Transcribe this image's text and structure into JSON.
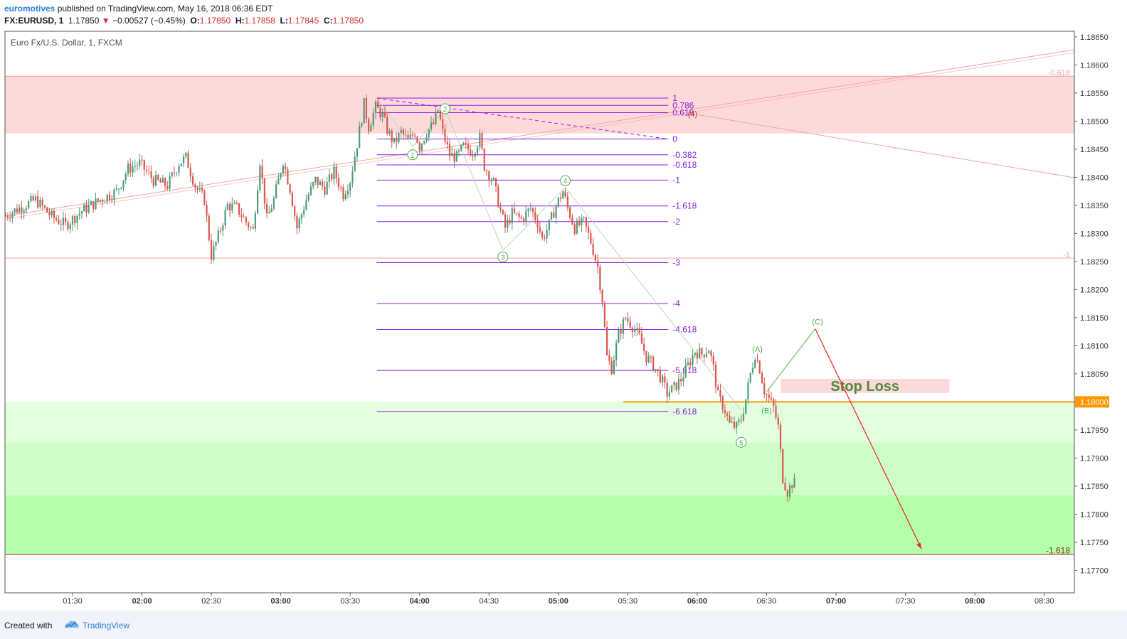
{
  "header": {
    "author": "euromotives",
    "published": "published on TradingView.com, May 16, 2018 06:36 EDT",
    "symbol": "FX:EURUSD, 1",
    "last": "1.17850",
    "change_arrow": "▼",
    "change": "−0.00527 (−0.45%)",
    "o_label": "O:",
    "o": "1.17850",
    "h_label": "H:",
    "h": "1.17858",
    "l_label": "L:",
    "l": "1.17845",
    "c_label": "C:",
    "c": "1.17850"
  },
  "footer": {
    "created_with": "Created with",
    "brand": "TradingView"
  },
  "colors": {
    "up": "#4e9a77",
    "down": "#d9574d",
    "fib": "#8c1ee6",
    "fib_label": "#8c1ee6",
    "resistance_zone": "#fdd9d9",
    "support_zone": "#b6ffad",
    "orange_line": "#ff9800",
    "red_projection": "#ee2222",
    "green_wave": "#4caf50",
    "stop_loss_text": "#4e8a3a"
  },
  "chart_data": {
    "type": "candlestick",
    "title": "Euro Fx/U.S. Dollar, 1, FXCM",
    "ylim": [
      1.1766,
      1.1866
    ],
    "y_ticks": [
      "1.18650",
      "1.18600",
      "1.18550",
      "1.18500",
      "1.18450",
      "1.18400",
      "1.18350",
      "1.18300",
      "1.18250",
      "1.18200",
      "1.18150",
      "1.18100",
      "1.18050",
      "1.18000",
      "1.17950",
      "1.17900",
      "1.17850",
      "1.17800",
      "1.17750",
      "1.17700"
    ],
    "x_ticks": [
      {
        "label": "01:30",
        "bold": false,
        "t": 90
      },
      {
        "label": "02:00",
        "bold": true,
        "t": 120
      },
      {
        "label": "02:30",
        "bold": false,
        "t": 150
      },
      {
        "label": "03:00",
        "bold": true,
        "t": 180
      },
      {
        "label": "03:30",
        "bold": false,
        "t": 210
      },
      {
        "label": "04:00",
        "bold": true,
        "t": 240
      },
      {
        "label": "04:30",
        "bold": false,
        "t": 270
      },
      {
        "label": "05:00",
        "bold": true,
        "t": 300
      },
      {
        "label": "05:30",
        "bold": false,
        "t": 330
      },
      {
        "label": "06:00",
        "bold": true,
        "t": 360
      },
      {
        "label": "06:30",
        "bold": false,
        "t": 390
      },
      {
        "label": "07:00",
        "bold": true,
        "t": 420
      },
      {
        "label": "07:30",
        "bold": false,
        "t": 450
      },
      {
        "label": "08:00",
        "bold": true,
        "t": 480
      },
      {
        "label": "08:30",
        "bold": false,
        "t": 510
      }
    ],
    "t_range": [
      60.8,
      523
    ],
    "price_path": [
      [
        61,
        1.1833
      ],
      [
        68,
        1.18345
      ],
      [
        75,
        1.1836
      ],
      [
        82,
        1.1833
      ],
      [
        88,
        1.18315
      ],
      [
        95,
        1.1834
      ],
      [
        103,
        1.1836
      ],
      [
        110,
        1.18375
      ],
      [
        115,
        1.18415
      ],
      [
        120,
        1.18425
      ],
      [
        126,
        1.18395
      ],
      [
        132,
        1.18385
      ],
      [
        137,
        1.18425
      ],
      [
        140,
        1.18435
      ],
      [
        144,
        1.18385
      ],
      [
        148,
        1.1836
      ],
      [
        151,
        1.1826
      ],
      [
        154,
        1.18295
      ],
      [
        158,
        1.1835
      ],
      [
        162,
        1.18345
      ],
      [
        166,
        1.1832
      ],
      [
        169,
        1.18305
      ],
      [
        172,
        1.1843
      ],
      [
        175,
        1.18325
      ],
      [
        178,
        1.1836
      ],
      [
        182,
        1.1843
      ],
      [
        185,
        1.1838
      ],
      [
        188,
        1.1831
      ],
      [
        192,
        1.1836
      ],
      [
        196,
        1.18395
      ],
      [
        200,
        1.1838
      ],
      [
        204,
        1.1841
      ],
      [
        208,
        1.1837
      ],
      [
        211,
        1.18395
      ],
      [
        214,
        1.1846
      ],
      [
        217,
        1.1853
      ],
      [
        219,
        1.1849
      ],
      [
        222,
        1.18525
      ],
      [
        225,
        1.1851
      ],
      [
        227,
        1.18485
      ],
      [
        230,
        1.1846
      ],
      [
        233,
        1.1848
      ],
      [
        236,
        1.18465
      ],
      [
        239,
        1.1848
      ],
      [
        241,
        1.18455
      ],
      [
        244,
        1.1848
      ],
      [
        247,
        1.18495
      ],
      [
        249,
        1.1852
      ],
      [
        251,
        1.1848
      ],
      [
        254,
        1.1844
      ],
      [
        257,
        1.18435
      ],
      [
        260,
        1.18455
      ],
      [
        264,
        1.18445
      ],
      [
        267,
        1.1847
      ],
      [
        269,
        1.1842
      ],
      [
        273,
        1.1839
      ],
      [
        276,
        1.1834
      ],
      [
        278,
        1.1831
      ],
      [
        281,
        1.18335
      ],
      [
        285,
        1.18325
      ],
      [
        289,
        1.18345
      ],
      [
        292,
        1.1832
      ],
      [
        294,
        1.1829
      ],
      [
        297,
        1.18315
      ],
      [
        300,
        1.1835
      ],
      [
        303,
        1.18375
      ],
      [
        305,
        1.18345
      ],
      [
        308,
        1.1831
      ],
      [
        312,
        1.1832
      ],
      [
        315,
        1.18285
      ],
      [
        318,
        1.1824
      ],
      [
        320,
        1.1818
      ],
      [
        322,
        1.1808
      ],
      [
        324,
        1.1806
      ],
      [
        327,
        1.1812
      ],
      [
        330,
        1.1815
      ],
      [
        333,
        1.18135
      ],
      [
        336,
        1.18115
      ],
      [
        339,
        1.1808
      ],
      [
        342,
        1.18065
      ],
      [
        345,
        1.18045
      ],
      [
        348,
        1.18015
      ],
      [
        351,
        1.18025
      ],
      [
        354,
        1.1804
      ],
      [
        357,
        1.18065
      ],
      [
        360,
        1.1809
      ],
      [
        363,
        1.18085
      ],
      [
        366,
        1.18095
      ],
      [
        368,
        1.1806
      ],
      [
        370,
        1.1801
      ],
      [
        373,
        1.17985
      ],
      [
        375,
        1.1796
      ],
      [
        378,
        1.17955
      ],
      [
        380,
        1.1797
      ],
      [
        382,
        1.18005
      ],
      [
        384,
        1.1805
      ],
      [
        386,
        1.18085
      ],
      [
        388,
        1.1806
      ],
      [
        390,
        1.1802
      ],
      [
        392,
        1.18005
      ],
      [
        394,
        1.1799
      ],
      [
        396,
        1.17955
      ],
      [
        398,
        1.17865
      ],
      [
        400,
        1.1784
      ],
      [
        402,
        1.17855
      ]
    ],
    "zones": [
      {
        "name": "resistance-zone",
        "from": 1.1858,
        "to": 1.18478,
        "color": "#fdd9d9"
      },
      {
        "name": "support-zone-light",
        "from": 1.18001,
        "to": 1.17928,
        "color": "#e3ffe0"
      },
      {
        "name": "support-zone-mid",
        "from": 1.17928,
        "to": 1.17834,
        "color": "#cfffc9"
      },
      {
        "name": "support-zone-dark",
        "from": 1.17834,
        "to": 1.17728,
        "color": "#b6ffad"
      }
    ],
    "zone_edge_labels": [
      "-0.618",
      "-1",
      "-1.618"
    ],
    "fib_levels": [
      {
        "label": "1",
        "price": 1.18541
      },
      {
        "label": "0.786",
        "price": 1.18528
      },
      {
        "label": "0.618",
        "price": 1.18515
      },
      {
        "label": "0",
        "price": 1.18468
      },
      {
        "label": "-0.382",
        "price": 1.1844
      },
      {
        "label": "-0.618",
        "price": 1.18422
      },
      {
        "label": "-1",
        "price": 1.18395
      },
      {
        "label": "-1.618",
        "price": 1.18349
      },
      {
        "label": "-2",
        "price": 1.18321
      },
      {
        "label": "-3",
        "price": 1.18248
      },
      {
        "label": "-4",
        "price": 1.18175
      },
      {
        "label": "-4.618",
        "price": 1.18129
      },
      {
        "label": "-5.618",
        "price": 1.18056
      },
      {
        "label": "-6.618",
        "price": 1.17983
      }
    ],
    "fib_range_t": [
      221.5,
      347.5
    ],
    "price_marker": {
      "label": "1.18000",
      "price": 1.18,
      "from_t": 328
    },
    "stop_loss": {
      "label": "Stop Loss",
      "top": 1.18041,
      "bottom": 1.18016,
      "from_t": 396,
      "to_t": 469
    },
    "wave_labels": [
      {
        "label": "1",
        "t": 237,
        "price": 1.1844
      },
      {
        "label": "2",
        "t": 251,
        "price": 1.18522
      },
      {
        "label": "3",
        "t": 276,
        "price": 1.18258
      },
      {
        "label": "4",
        "t": 303,
        "price": 1.18394
      },
      {
        "label": "5",
        "t": 379,
        "price": 1.17928
      },
      {
        "label": "(4)",
        "t": 358,
        "price": 1.18513
      },
      {
        "label": "(A)",
        "t": 386,
        "price": 1.18094
      },
      {
        "label": "(B)",
        "t": 390,
        "price": 1.17985
      },
      {
        "label": "(C)",
        "t": 412,
        "price": 1.18143
      }
    ],
    "projection": [
      [
        390,
        1.18018
      ],
      [
        411,
        1.1813
      ],
      [
        457,
        1.17738
      ]
    ]
  }
}
